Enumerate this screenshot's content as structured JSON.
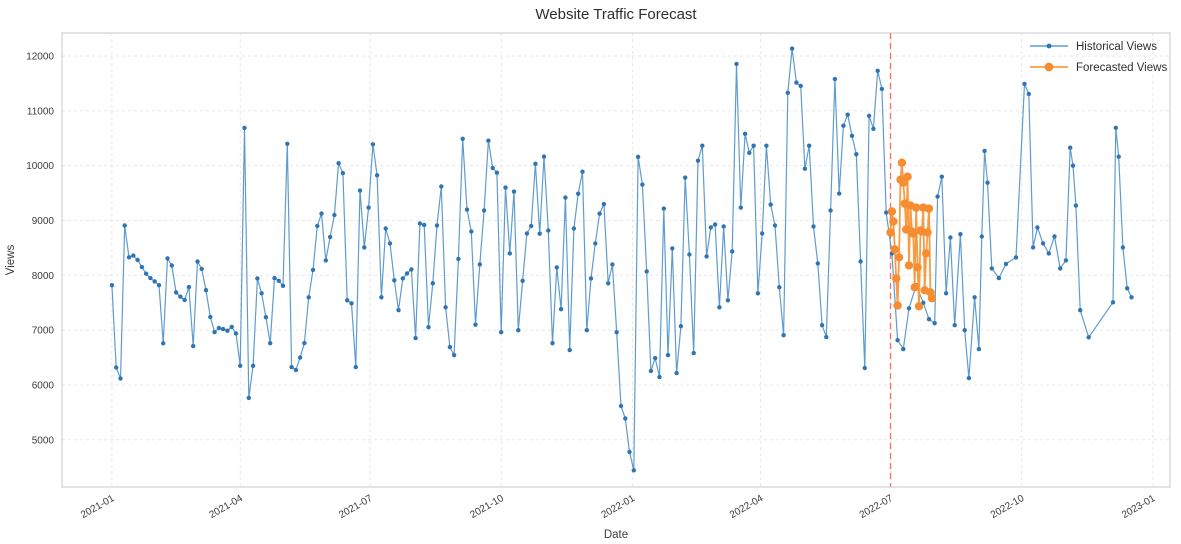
{
  "title": "Website Traffic Forecast",
  "colors": {
    "background": "#ffffff",
    "grid": "#e4e4e7",
    "spine": "#c8c8c8",
    "title_text": "#2e2e2e",
    "tick_text": "#3c3c3c",
    "historical_line": "#5f9ccd",
    "historical_marker": "#2f74b3",
    "forecast_line": "#f99b43",
    "forecast_marker": "#f68d31",
    "forecast_start_line": "#f87272"
  },
  "chart_data": {
    "type": "line",
    "title": "Website Traffic Forecast",
    "xlabel": "Date",
    "ylabel": "Views",
    "grid": true,
    "legend_position": "upper right",
    "axes": {
      "x_range": [
        "2020-11-27",
        "2023-01-13"
      ],
      "y_range": [
        4140,
        12420
      ],
      "y_ticks": [
        5000,
        6000,
        7000,
        8000,
        9000,
        10000,
        11000,
        12000
      ],
      "x_ticks": [
        {
          "date": "2021-01-01",
          "label": "2021-01"
        },
        {
          "date": "2021-04-01",
          "label": "2021-04"
        },
        {
          "date": "2021-07-01",
          "label": "2021-07"
        },
        {
          "date": "2021-10-01",
          "label": "2021-10"
        },
        {
          "date": "2022-01-01",
          "label": "2022-01"
        },
        {
          "date": "2022-04-01",
          "label": "2022-04"
        },
        {
          "date": "2022-07-01",
          "label": "2022-07"
        },
        {
          "date": "2022-10-01",
          "label": "2022-10"
        },
        {
          "date": "2023-01-01",
          "label": "2023-01"
        }
      ]
    },
    "vline": {
      "date": "2022-07-01",
      "color": "#f87272",
      "style": "dashed",
      "meaning": "forecast start"
    },
    "series": [
      {
        "name": "Historical Views",
        "color": "#5f9ccd",
        "marker_color": "#2f74b3",
        "marker_size": 2.2,
        "line_width": 1.2,
        "points": [
          [
            "2021-01-01",
            7820
          ],
          [
            "2021-01-04",
            6320
          ],
          [
            "2021-01-07",
            6118
          ],
          [
            "2021-01-10",
            8910
          ],
          [
            "2021-01-13",
            8330
          ],
          [
            "2021-01-16",
            8360
          ],
          [
            "2021-01-19",
            8280
          ],
          [
            "2021-01-22",
            8150
          ],
          [
            "2021-01-25",
            8030
          ],
          [
            "2021-01-28",
            7950
          ],
          [
            "2021-01-31",
            7890
          ],
          [
            "2021-02-03",
            7820
          ],
          [
            "2021-02-06",
            6760
          ],
          [
            "2021-02-09",
            8310
          ],
          [
            "2021-02-12",
            8180
          ],
          [
            "2021-02-15",
            7690
          ],
          [
            "2021-02-18",
            7610
          ],
          [
            "2021-02-21",
            7550
          ],
          [
            "2021-02-24",
            7785
          ],
          [
            "2021-02-27",
            6710
          ],
          [
            "2021-03-02",
            8250
          ],
          [
            "2021-03-05",
            8115
          ],
          [
            "2021-03-08",
            7730
          ],
          [
            "2021-03-11",
            7240
          ],
          [
            "2021-03-14",
            6965
          ],
          [
            "2021-03-17",
            7040
          ],
          [
            "2021-03-20",
            7020
          ],
          [
            "2021-03-23",
            6990
          ],
          [
            "2021-03-26",
            7060
          ],
          [
            "2021-03-29",
            6940
          ],
          [
            "2021-04-01",
            6350
          ],
          [
            "2021-04-04",
            10690
          ],
          [
            "2021-04-07",
            5765
          ],
          [
            "2021-04-10",
            6350
          ],
          [
            "2021-04-13",
            7945
          ],
          [
            "2021-04-16",
            7672
          ],
          [
            "2021-04-19",
            7236
          ],
          [
            "2021-04-22",
            6763
          ],
          [
            "2021-04-25",
            7950
          ],
          [
            "2021-04-28",
            7900
          ],
          [
            "2021-05-01",
            7810
          ],
          [
            "2021-05-04",
            10400
          ],
          [
            "2021-05-07",
            6327
          ],
          [
            "2021-05-10",
            6273
          ],
          [
            "2021-05-13",
            6500
          ],
          [
            "2021-05-16",
            6765
          ],
          [
            "2021-05-19",
            7600
          ],
          [
            "2021-05-22",
            8100
          ],
          [
            "2021-05-25",
            8900
          ],
          [
            "2021-05-28",
            9127
          ],
          [
            "2021-05-31",
            8273
          ],
          [
            "2021-06-03",
            8700
          ],
          [
            "2021-06-06",
            9100
          ],
          [
            "2021-06-09",
            10045
          ],
          [
            "2021-06-12",
            9865
          ],
          [
            "2021-06-15",
            7545
          ],
          [
            "2021-06-18",
            7490
          ],
          [
            "2021-06-21",
            6327
          ],
          [
            "2021-06-24",
            9545
          ],
          [
            "2021-06-27",
            8509
          ],
          [
            "2021-06-30",
            9236
          ],
          [
            "2021-07-03",
            10390
          ],
          [
            "2021-07-06",
            9825
          ],
          [
            "2021-07-09",
            7600
          ],
          [
            "2021-07-12",
            8855
          ],
          [
            "2021-07-15",
            8582
          ],
          [
            "2021-07-18",
            7909
          ],
          [
            "2021-07-21",
            7364
          ],
          [
            "2021-07-24",
            7945
          ],
          [
            "2021-07-27",
            8036
          ],
          [
            "2021-07-30",
            8109
          ],
          [
            "2021-08-02",
            6855
          ],
          [
            "2021-08-05",
            8945
          ],
          [
            "2021-08-08",
            8920
          ],
          [
            "2021-08-11",
            7055
          ],
          [
            "2021-08-14",
            7855
          ],
          [
            "2021-08-17",
            8909
          ],
          [
            "2021-08-20",
            9620
          ],
          [
            "2021-08-23",
            7418
          ],
          [
            "2021-08-26",
            6691
          ],
          [
            "2021-08-29",
            6545
          ],
          [
            "2021-09-01",
            8300
          ],
          [
            "2021-09-04",
            10490
          ],
          [
            "2021-09-07",
            9200
          ],
          [
            "2021-09-10",
            8800
          ],
          [
            "2021-09-13",
            7100
          ],
          [
            "2021-09-16",
            8200
          ],
          [
            "2021-09-19",
            9182
          ],
          [
            "2021-09-22",
            10455
          ],
          [
            "2021-09-25",
            9960
          ],
          [
            "2021-09-28",
            9873
          ],
          [
            "2021-10-01",
            6964
          ],
          [
            "2021-10-04",
            9600
          ],
          [
            "2021-10-07",
            8400
          ],
          [
            "2021-10-10",
            9527
          ],
          [
            "2021-10-13",
            7000
          ],
          [
            "2021-10-16",
            7900
          ],
          [
            "2021-10-19",
            8764
          ],
          [
            "2021-10-22",
            8900
          ],
          [
            "2021-10-25",
            10035
          ],
          [
            "2021-10-28",
            8760
          ],
          [
            "2021-10-31",
            10165
          ],
          [
            "2021-11-03",
            8818
          ],
          [
            "2021-11-06",
            6763
          ],
          [
            "2021-11-09",
            8145
          ],
          [
            "2021-11-12",
            7382
          ],
          [
            "2021-11-15",
            9418
          ],
          [
            "2021-11-18",
            6636
          ],
          [
            "2021-11-21",
            8855
          ],
          [
            "2021-11-24",
            9490
          ],
          [
            "2021-11-27",
            9890
          ],
          [
            "2021-11-30",
            7000
          ],
          [
            "2021-12-03",
            7945
          ],
          [
            "2021-12-06",
            8582
          ],
          [
            "2021-12-09",
            9127
          ],
          [
            "2021-12-12",
            9300
          ],
          [
            "2021-12-15",
            7855
          ],
          [
            "2021-12-18",
            8200
          ],
          [
            "2021-12-21",
            6964
          ],
          [
            "2021-12-24",
            5617
          ],
          [
            "2021-12-27",
            5390
          ],
          [
            "2021-12-30",
            4780
          ],
          [
            "2022-01-02",
            4445
          ],
          [
            "2022-01-05",
            10160
          ],
          [
            "2022-01-08",
            9655
          ],
          [
            "2022-01-11",
            8073
          ],
          [
            "2022-01-14",
            6255
          ],
          [
            "2022-01-17",
            6490
          ],
          [
            "2022-01-20",
            6145
          ],
          [
            "2022-01-23",
            9218
          ],
          [
            "2022-01-26",
            6545
          ],
          [
            "2022-01-29",
            8491
          ],
          [
            "2022-02-01",
            6218
          ],
          [
            "2022-02-04",
            7073
          ],
          [
            "2022-02-07",
            9782
          ],
          [
            "2022-02-10",
            8380
          ],
          [
            "2022-02-13",
            6582
          ],
          [
            "2022-02-16",
            10091
          ],
          [
            "2022-02-19",
            10364
          ],
          [
            "2022-02-22",
            8345
          ],
          [
            "2022-02-25",
            8873
          ],
          [
            "2022-02-28",
            8927
          ],
          [
            "2022-03-03",
            7418
          ],
          [
            "2022-03-06",
            8891
          ],
          [
            "2022-03-09",
            7545
          ],
          [
            "2022-03-12",
            8436
          ],
          [
            "2022-03-15",
            11855
          ],
          [
            "2022-03-18",
            9236
          ],
          [
            "2022-03-21",
            10582
          ],
          [
            "2022-03-24",
            10236
          ],
          [
            "2022-03-27",
            10364
          ],
          [
            "2022-03-30",
            7673
          ],
          [
            "2022-04-02",
            8764
          ],
          [
            "2022-04-05",
            10364
          ],
          [
            "2022-04-08",
            9291
          ],
          [
            "2022-04-11",
            8909
          ],
          [
            "2022-04-14",
            7782
          ],
          [
            "2022-04-17",
            6909
          ],
          [
            "2022-04-20",
            11330
          ],
          [
            "2022-04-23",
            12135
          ],
          [
            "2022-04-26",
            11515
          ],
          [
            "2022-04-29",
            11455
          ],
          [
            "2022-05-02",
            9945
          ],
          [
            "2022-05-05",
            10364
          ],
          [
            "2022-05-08",
            8891
          ],
          [
            "2022-05-11",
            8218
          ],
          [
            "2022-05-14",
            7091
          ],
          [
            "2022-05-17",
            6873
          ],
          [
            "2022-05-20",
            9182
          ],
          [
            "2022-05-23",
            11580
          ],
          [
            "2022-05-26",
            9491
          ],
          [
            "2022-05-29",
            10730
          ],
          [
            "2022-06-01",
            10930
          ],
          [
            "2022-06-04",
            10545
          ],
          [
            "2022-06-07",
            10210
          ],
          [
            "2022-06-10",
            8255
          ],
          [
            "2022-06-13",
            6310
          ],
          [
            "2022-06-16",
            10909
          ],
          [
            "2022-06-19",
            10673
          ],
          [
            "2022-06-22",
            11730
          ],
          [
            "2022-06-25",
            11400
          ],
          [
            "2022-06-28",
            9145
          ],
          [
            "2022-07-02",
            8400
          ],
          [
            "2022-07-06",
            6818
          ],
          [
            "2022-07-10",
            6655
          ],
          [
            "2022-07-14",
            7400
          ],
          [
            "2022-07-19",
            7820
          ],
          [
            "2022-07-24",
            7500
          ],
          [
            "2022-07-28",
            7200
          ],
          [
            "2022-08-01",
            7127
          ],
          [
            "2022-08-03",
            9437
          ],
          [
            "2022-08-06",
            9800
          ],
          [
            "2022-08-09",
            7673
          ],
          [
            "2022-08-12",
            8691
          ],
          [
            "2022-08-15",
            7091
          ],
          [
            "2022-08-19",
            8750
          ],
          [
            "2022-08-22",
            7000
          ],
          [
            "2022-08-25",
            6127
          ],
          [
            "2022-08-29",
            7600
          ],
          [
            "2022-09-01",
            6655
          ],
          [
            "2022-09-03",
            8709
          ],
          [
            "2022-09-05",
            10270
          ],
          [
            "2022-09-07",
            9690
          ],
          [
            "2022-09-10",
            8127
          ],
          [
            "2022-09-15",
            7950
          ],
          [
            "2022-09-20",
            8209
          ],
          [
            "2022-09-27",
            8327
          ],
          [
            "2022-10-03",
            11491
          ],
          [
            "2022-10-06",
            11309
          ],
          [
            "2022-10-09",
            8509
          ],
          [
            "2022-10-12",
            8873
          ],
          [
            "2022-10-16",
            8582
          ],
          [
            "2022-10-20",
            8400
          ],
          [
            "2022-10-24",
            8709
          ],
          [
            "2022-10-28",
            8127
          ],
          [
            "2022-11-01",
            8273
          ],
          [
            "2022-11-04",
            10328
          ],
          [
            "2022-11-06",
            10000
          ],
          [
            "2022-11-08",
            9273
          ],
          [
            "2022-11-11",
            7364
          ],
          [
            "2022-11-17",
            6870
          ],
          [
            "2022-12-04",
            7509
          ],
          [
            "2022-12-06",
            10691
          ],
          [
            "2022-12-08",
            10164
          ],
          [
            "2022-12-11",
            8509
          ],
          [
            "2022-12-14",
            7764
          ],
          [
            "2022-12-17",
            7600
          ]
        ]
      },
      {
        "name": "Forecasted Views",
        "color": "#f99b43",
        "marker_color": "#f68d31",
        "marker_size": 4.2,
        "line_width": 1.8,
        "points": [
          [
            "2022-07-01",
            8782
          ],
          [
            "2022-07-02",
            9164
          ],
          [
            "2022-07-03",
            8982
          ],
          [
            "2022-07-04",
            8473
          ],
          [
            "2022-07-05",
            7945
          ],
          [
            "2022-07-06",
            7450
          ],
          [
            "2022-07-07",
            8330
          ],
          [
            "2022-07-08",
            9745
          ],
          [
            "2022-07-09",
            10055
          ],
          [
            "2022-07-10",
            9691
          ],
          [
            "2022-07-11",
            9309
          ],
          [
            "2022-07-12",
            8836
          ],
          [
            "2022-07-13",
            9800
          ],
          [
            "2022-07-14",
            8182
          ],
          [
            "2022-07-15",
            9273
          ],
          [
            "2022-07-16",
            8800
          ],
          [
            "2022-07-17",
            8764
          ],
          [
            "2022-07-18",
            7782
          ],
          [
            "2022-07-19",
            9236
          ],
          [
            "2022-07-20",
            8145
          ],
          [
            "2022-07-21",
            7436
          ],
          [
            "2022-07-22",
            8818
          ],
          [
            "2022-07-23",
            8800
          ],
          [
            "2022-07-24",
            9236
          ],
          [
            "2022-07-25",
            7727
          ],
          [
            "2022-07-26",
            8400
          ],
          [
            "2022-07-27",
            8782
          ],
          [
            "2022-07-28",
            9218
          ],
          [
            "2022-07-29",
            7691
          ],
          [
            "2022-07-30",
            7582
          ]
        ]
      }
    ]
  }
}
